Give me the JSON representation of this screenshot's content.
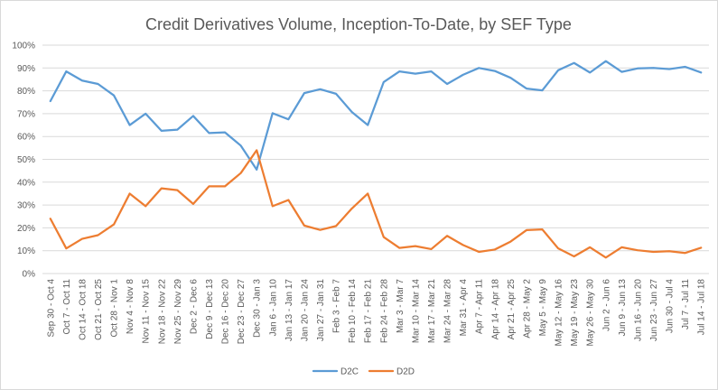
{
  "chart_data": {
    "type": "line",
    "title": "Credit Derivatives Volume, Inception-To-Date, by SEF Type",
    "xlabel": "",
    "ylabel": "",
    "ylim": [
      0,
      100
    ],
    "yticks": [
      0,
      10,
      20,
      30,
      40,
      50,
      60,
      70,
      80,
      90,
      100
    ],
    "ytick_labels": [
      "0%",
      "10%",
      "20%",
      "30%",
      "40%",
      "50%",
      "60%",
      "70%",
      "80%",
      "90%",
      "100%"
    ],
    "grid": true,
    "legend_position": "bottom",
    "categories": [
      "Sep 30 - Oct 4",
      "Oct 7 - Oct 11",
      "Oct 14 - Oct 18",
      "Oct 21 - Oct 25",
      "Oct 28 - Nov 1",
      "Nov 4 - Nov 8",
      "Nov 11 - Nov 15",
      "Nov 18 - Nov 22",
      "Nov 25 - Nov 29",
      "Dec 2 - Dec 6",
      "Dec 9 - Dec 13",
      "Dec 16 - Dec 20",
      "Dec 23 - Dec 27",
      "Dec 30 - Jan 3",
      "Jan 6 - Jan 10",
      "Jan 13 - Jan 17",
      "Jan 20 - Jan 24",
      "Jan 27 - Jan 31",
      "Feb 3 - Feb 7",
      "Feb 10 - Feb 14",
      "Feb 17 - Feb 21",
      "Feb 24 - Feb 28",
      "Mar 3 - Mar 7",
      "Mar 10 - Mar 14",
      "Mar 17 - Mar 21",
      "Mar 24 - Mar 28",
      "Mar 31 - Apr 4",
      "Apr 7 - Apr 11",
      "Apr 14 - Apr 18",
      "Apr 21 - Apr 25",
      "Apr 28 - May 2",
      "May 5 - May 9",
      "May 12 - May 16",
      "May 19 - May 23",
      "May 26 - May 30",
      "Jun 2 - Jun 6",
      "Jun 9 - Jun 13",
      "Jun 16 - Jun 20",
      "Jun 23 - Jun 27",
      "Jun 30 - Jul 4",
      "Jul 7 - Jul 11",
      "Jul 14 - Jul 18"
    ],
    "series": [
      {
        "name": "D2C",
        "color": "#5B9BD5",
        "values": [
          75.5,
          88.5,
          84.5,
          83,
          78,
          65,
          70,
          62.5,
          63,
          69,
          61.5,
          61.8,
          56,
          45.5,
          70.2,
          67.5,
          79,
          80.7,
          78.7,
          70.7,
          65,
          83.8,
          88.5,
          87.5,
          88.5,
          83,
          87,
          90,
          88.7,
          85.7,
          81,
          80.2,
          89,
          92.2,
          88,
          93,
          88.3,
          89.8,
          90,
          89.5,
          90.5,
          88
        ]
      },
      {
        "name": "D2D",
        "color": "#ED7D31",
        "values": [
          24,
          11,
          15.2,
          16.8,
          21.5,
          35,
          29.5,
          37.3,
          36.5,
          30.5,
          38.2,
          38.2,
          44,
          54,
          29.5,
          32.2,
          21,
          19.1,
          20.8,
          28.5,
          35,
          16,
          11.2,
          12,
          10.7,
          16.5,
          12.5,
          9.5,
          10.5,
          14,
          19,
          19.3,
          11,
          7.5,
          11.5,
          7,
          11.5,
          10.2,
          9.5,
          9.8,
          9,
          11.3
        ]
      }
    ]
  },
  "colors": {
    "grid": "#d9d9d9",
    "text": "#595959",
    "border": "#d9d9d9"
  }
}
